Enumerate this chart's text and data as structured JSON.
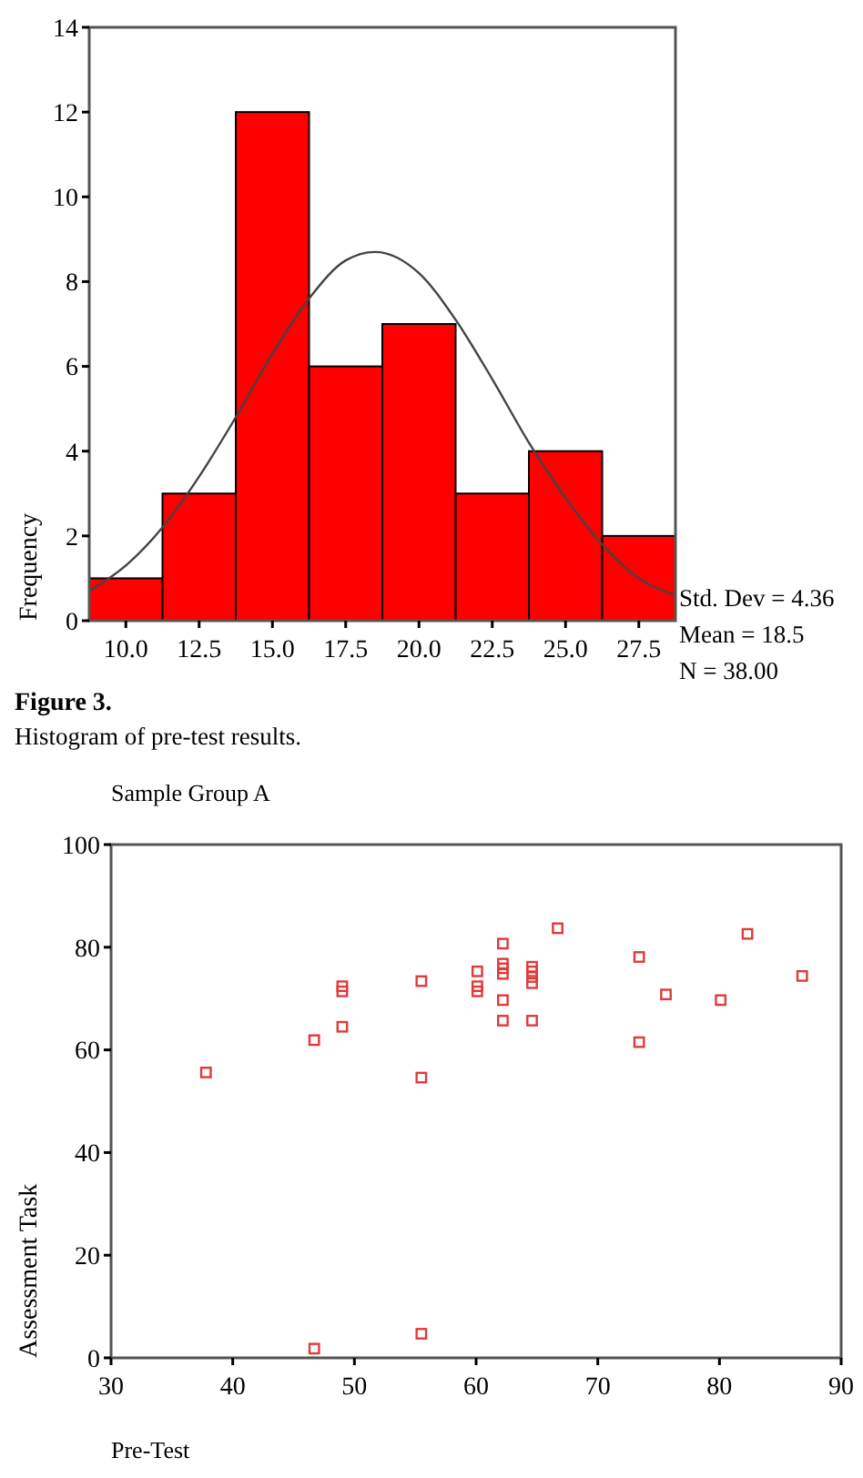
{
  "chart_data": [
    {
      "type": "histogram",
      "ylabel": "Frequency",
      "bins": [
        8.75,
        11.25,
        13.75,
        16.25,
        18.75,
        21.25,
        23.75,
        26.25,
        28.75
      ],
      "series": [
        {
          "color": "#ff0000",
          "values": [
            1,
            3,
            12,
            6,
            7,
            3,
            4,
            2
          ]
        },
        {
          "type": "line",
          "color": "#444444",
          "x": [
            8.75,
            10,
            11.25,
            12.5,
            13.75,
            15,
            16.25,
            17.5,
            18.5,
            20,
            21.25,
            22.5,
            23.75,
            25,
            26.25,
            27.5,
            28.75
          ],
          "values": [
            0.7,
            1.3,
            2.2,
            3.4,
            4.8,
            6.3,
            7.6,
            8.5,
            8.7,
            8.2,
            7.1,
            5.7,
            4.2,
            2.9,
            1.8,
            1.0,
            0.6
          ]
        }
      ],
      "xlim": [
        8.75,
        28.75
      ],
      "ylim": [
        0,
        14
      ],
      "xticks": [
        {
          "value": 10,
          "label": "10.0"
        },
        {
          "value": 12.5,
          "label": "12.5"
        },
        {
          "value": 15,
          "label": "15.0"
        },
        {
          "value": 17.5,
          "label": "17.5"
        },
        {
          "value": 20,
          "label": "20.0"
        },
        {
          "value": 22.5,
          "label": "22.5"
        },
        {
          "value": 25,
          "label": "25.0"
        },
        {
          "value": 27.5,
          "label": "27.5"
        }
      ],
      "yticks": [
        0,
        2,
        4,
        6,
        8,
        10,
        12,
        14
      ],
      "annotations": [
        "Std. Dev = 4.36",
        "Mean = 18.5",
        "N = 38.00",
        "Figure 3.",
        "Histogram of pre-test results."
      ]
    },
    {
      "type": "scatter",
      "title": "Sample Group A",
      "xlabel": "Pre-Test",
      "ylabel": "Assessment Task",
      "marker": "square",
      "color": "#e03a3a",
      "x": [
        37.8,
        46.7,
        49.0,
        49.0,
        49.0,
        55.5,
        55.5,
        60.1,
        60.1,
        60.1,
        62.2,
        62.2,
        62.2,
        62.2,
        62.2,
        62.2,
        64.6,
        64.6,
        64.6,
        64.6,
        64.6,
        66.7,
        73.4,
        73.4,
        75.6,
        80.1,
        82.3,
        86.8,
        46.7,
        55.5
      ],
      "values": [
        55.6,
        61.9,
        72.4,
        71.4,
        64.5,
        73.4,
        54.6,
        75.3,
        72.4,
        71.4,
        80.7,
        76.8,
        75.9,
        74.8,
        69.7,
        65.7,
        76.2,
        75.3,
        74.2,
        73.0,
        65.7,
        83.7,
        78.1,
        61.5,
        70.8,
        69.7,
        82.6,
        74.4,
        1.8,
        4.7
      ],
      "xlim": [
        30,
        90
      ],
      "ylim": [
        0,
        100
      ],
      "xticks": [
        30,
        40,
        50,
        60,
        70,
        80,
        90
      ],
      "yticks": [
        0,
        20,
        40,
        60,
        80,
        100
      ]
    }
  ]
}
